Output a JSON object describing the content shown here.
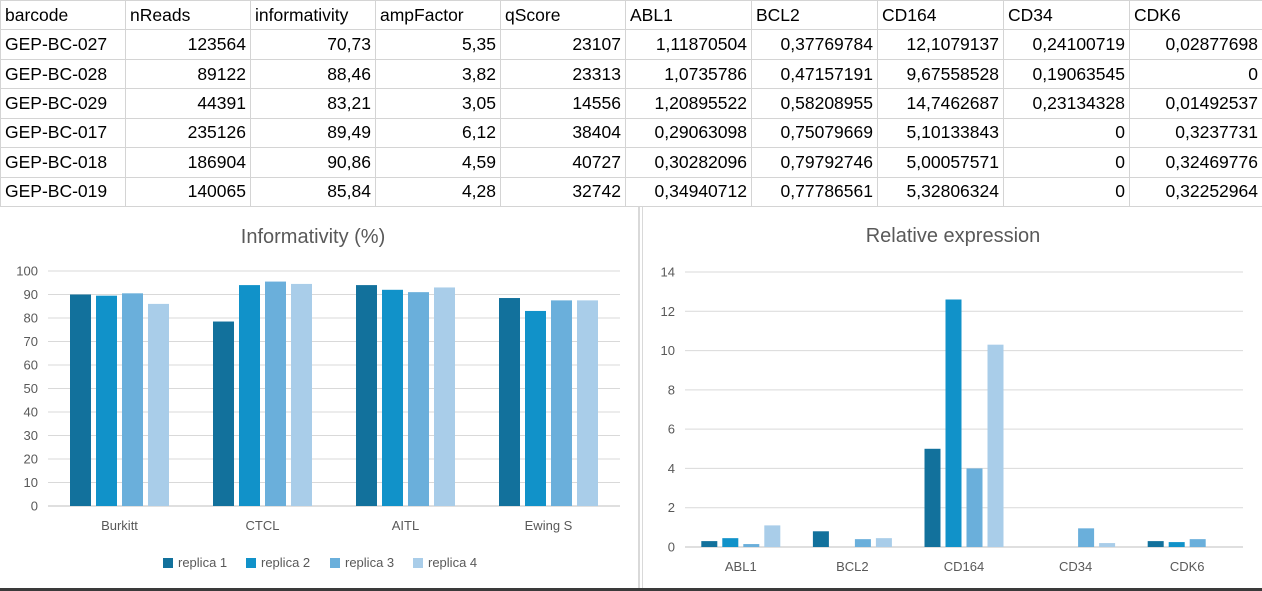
{
  "sheet": {
    "headers": [
      "barcode",
      "nReads",
      "informativity",
      "ampFactor",
      "qScore",
      "ABL1",
      "BCL2",
      "CD164",
      "CD34",
      "CDK6"
    ],
    "rows": [
      [
        "GEP-BC-027",
        "123564",
        "70,73",
        "5,35",
        "23107",
        "1,11870504",
        "0,37769784",
        "12,1079137",
        "0,24100719",
        "0,02877698"
      ],
      [
        "GEP-BC-028",
        "89122",
        "88,46",
        "3,82",
        "23313",
        "1,0735786",
        "0,47157191",
        "9,67558528",
        "0,19063545",
        "0"
      ],
      [
        "GEP-BC-029",
        "44391",
        "83,21",
        "3,05",
        "14556",
        "1,20895522",
        "0,58208955",
        "14,7462687",
        "0,23134328",
        "0,01492537"
      ],
      [
        "GEP-BC-017",
        "235126",
        "89,49",
        "6,12",
        "38404",
        "0,29063098",
        "0,75079669",
        "5,10133843",
        "0",
        "0,3237731"
      ],
      [
        "GEP-BC-018",
        "186904",
        "90,86",
        "4,59",
        "40727",
        "0,30282096",
        "0,79792746",
        "5,00057571",
        "0",
        "0,32469776"
      ],
      [
        "GEP-BC-019",
        "140065",
        "85,84",
        "4,28",
        "32742",
        "0,34940712",
        "0,77786561",
        "5,32806324",
        "0",
        "0,32252964"
      ]
    ]
  },
  "colors": {
    "series": [
      "#12719c",
      "#1192c9",
      "#6aafdb",
      "#a9cde9"
    ],
    "grid": "#d9d9d9",
    "text": "#595959"
  },
  "chart_data": [
    {
      "type": "bar",
      "title": "Informativity (%)",
      "categories": [
        "Burkitt",
        "CTCL",
        "AITL",
        "Ewing S"
      ],
      "series": [
        {
          "name": "replica 1",
          "values": [
            90,
            78.5,
            94,
            88.5
          ]
        },
        {
          "name": "replica 2",
          "values": [
            89.5,
            94,
            92,
            83
          ]
        },
        {
          "name": "replica 3",
          "values": [
            90.5,
            95.5,
            91,
            87.5
          ]
        },
        {
          "name": "replica 4",
          "values": [
            86,
            94.5,
            93,
            87.5
          ]
        }
      ],
      "ylim": [
        0,
        100
      ],
      "yticks": [
        0,
        10,
        20,
        30,
        40,
        50,
        60,
        70,
        80,
        90,
        100
      ],
      "grid": true,
      "legend": "bottom"
    },
    {
      "type": "bar",
      "title": "Relative expression",
      "categories": [
        "ABL1",
        "BCL2",
        "CD164",
        "CD34",
        "CDK6"
      ],
      "series": [
        {
          "values": [
            0.3,
            0.8,
            5.0,
            0,
            0.3
          ]
        },
        {
          "values": [
            0.45,
            0,
            12.6,
            0,
            0.25
          ]
        },
        {
          "values": [
            0.15,
            0.4,
            4.0,
            0.95,
            0.4
          ]
        },
        {
          "values": [
            1.1,
            0.45,
            10.3,
            0.2,
            0
          ]
        }
      ],
      "ylim": [
        0,
        14
      ],
      "yticks": [
        0,
        2,
        4,
        6,
        8,
        10,
        12,
        14
      ],
      "grid": true
    }
  ]
}
